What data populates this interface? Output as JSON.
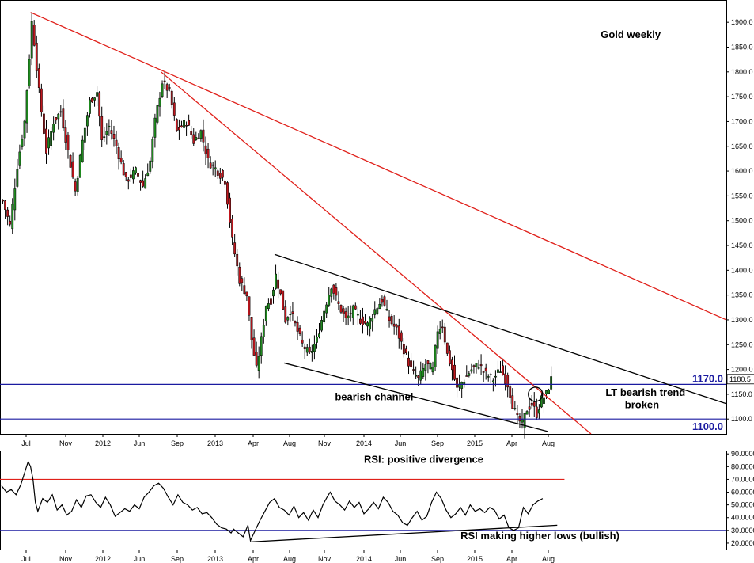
{
  "chart_data": [
    {
      "type": "candlestick",
      "title": "Gold weekly",
      "x_tick_labels": [
        "Jul",
        "Nov",
        "2012",
        "Jun",
        "Sep",
        "2013",
        "Apr",
        "Aug",
        "Nov",
        "2014",
        "Jun",
        "Sep",
        "2015",
        "Apr",
        "Aug"
      ],
      "y_tick_labels": [
        "1900.0",
        "1850.0",
        "1800.0",
        "1750.0",
        "1700.0",
        "1650.0",
        "1600.0",
        "1550.0",
        "1500.0",
        "1450.0",
        "1400.0",
        "1350.0",
        "1300.0",
        "1250.0",
        "1200.0",
        "1150.0",
        "1100.0"
      ],
      "ylim": [
        1070,
        1945
      ],
      "y_ticks": [
        1900,
        1850,
        1800,
        1750,
        1700,
        1650,
        1600,
        1550,
        1500,
        1450,
        1400,
        1350,
        1300,
        1250,
        1200,
        1150,
        1100
      ],
      "up_color": "#1f8a1f",
      "down_color": "#c0161d",
      "approx_close_path": [
        [
          0,
          1540
        ],
        [
          3,
          1490
        ],
        [
          6,
          1610
        ],
        [
          9,
          1700
        ],
        [
          11,
          1830
        ],
        [
          12,
          1900
        ],
        [
          13,
          1860
        ],
        [
          15,
          1760
        ],
        [
          18,
          1640
        ],
        [
          21,
          1700
        ],
        [
          24,
          1720
        ],
        [
          27,
          1640
        ],
        [
          30,
          1560
        ],
        [
          33,
          1660
        ],
        [
          36,
          1740
        ],
        [
          39,
          1760
        ],
        [
          41,
          1660
        ],
        [
          44,
          1690
        ],
        [
          47,
          1650
        ],
        [
          51,
          1580
        ],
        [
          55,
          1600
        ],
        [
          58,
          1570
        ],
        [
          61,
          1620
        ],
        [
          63,
          1700
        ],
        [
          66,
          1780
        ],
        [
          69,
          1760
        ],
        [
          72,
          1680
        ],
        [
          76,
          1700
        ],
        [
          79,
          1660
        ],
        [
          82,
          1680
        ],
        [
          85,
          1620
        ],
        [
          89,
          1600
        ],
        [
          92,
          1580
        ],
        [
          95,
          1460
        ],
        [
          98,
          1380
        ],
        [
          101,
          1350
        ],
        [
          103,
          1260
        ],
        [
          105,
          1200
        ],
        [
          107,
          1260
        ],
        [
          109,
          1330
        ],
        [
          111,
          1340
        ],
        [
          113,
          1390
        ],
        [
          115,
          1350
        ],
        [
          117,
          1300
        ],
        [
          119,
          1320
        ],
        [
          121,
          1290
        ],
        [
          124,
          1250
        ],
        [
          127,
          1230
        ],
        [
          130,
          1260
        ],
        [
          133,
          1320
        ],
        [
          136,
          1370
        ],
        [
          139,
          1330
        ],
        [
          142,
          1300
        ],
        [
          145,
          1320
        ],
        [
          148,
          1300
        ],
        [
          151,
          1290
        ],
        [
          154,
          1320
        ],
        [
          157,
          1340
        ],
        [
          160,
          1300
        ],
        [
          163,
          1280
        ],
        [
          166,
          1240
        ],
        [
          169,
          1200
        ],
        [
          172,
          1180
        ],
        [
          175,
          1210
        ],
        [
          178,
          1200
        ],
        [
          180,
          1280
        ],
        [
          182,
          1290
        ],
        [
          184,
          1230
        ],
        [
          186,
          1200
        ],
        [
          188,
          1160
        ],
        [
          191,
          1180
        ],
        [
          194,
          1200
        ],
        [
          197,
          1210
        ],
        [
          200,
          1190
        ],
        [
          203,
          1180
        ],
        [
          206,
          1200
        ],
        [
          209,
          1170
        ],
        [
          211,
          1130
        ],
        [
          213,
          1100
        ],
        [
          215,
          1090
        ],
        [
          217,
          1120
        ],
        [
          219,
          1130
        ],
        [
          221,
          1110
        ],
        [
          223,
          1140
        ],
        [
          225,
          1150
        ],
        [
          227,
          1180
        ]
      ],
      "levels": [
        {
          "value": 1170.0,
          "label": "1170.0",
          "color": "#1a1aa0"
        },
        {
          "value": 1100.0,
          "label": "1100.0",
          "color": "#1a1aa0"
        }
      ],
      "last_price_label": "1180.5",
      "last_price": 1180.5,
      "trendlines": [
        {
          "color": "#e0201a",
          "from": [
            12,
            1920
          ],
          "to": [
            300,
            1300
          ]
        },
        {
          "color": "#e0201a",
          "from": [
            66,
            1800
          ],
          "to": [
            244,
            1070
          ]
        },
        {
          "color": "#000000",
          "from": [
            113,
            1432
          ],
          "to": [
            300,
            1131
          ]
        },
        {
          "color": "#000000",
          "from": [
            117,
            1213
          ],
          "to": [
            226,
            1075
          ]
        }
      ],
      "annotations": [
        {
          "text": "Gold weekly",
          "x": 248,
          "y": 1868
        },
        {
          "text": "bearish channel",
          "x": 138,
          "y": 1138
        },
        {
          "text": "LT bearish trend",
          "x": 250,
          "y": 1147
        },
        {
          "text": "broken",
          "x": 258,
          "y": 1122
        }
      ],
      "circle_marker": {
        "x": 221,
        "y": 1150
      }
    },
    {
      "type": "line",
      "title": "RSI: positive divergence",
      "x_tick_labels": [
        "Jul",
        "Nov",
        "2012",
        "Jun",
        "Sep",
        "2013",
        "Apr",
        "Aug",
        "Nov",
        "2014",
        "Jun",
        "Sep",
        "2015",
        "Apr",
        "Aug"
      ],
      "y_tick_labels": [
        "90.0000",
        "80.0000",
        "70.0000",
        "60.0000",
        "50.0000",
        "40.0000",
        "30.0000",
        "20.0000"
      ],
      "ylim": [
        15,
        92
      ],
      "y_ticks": [
        90,
        80,
        70,
        60,
        50,
        40,
        30,
        20
      ],
      "series": [
        {
          "color": "#000000",
          "values": [
            [
              0,
              65
            ],
            [
              2,
              60
            ],
            [
              4,
              62
            ],
            [
              6,
              58
            ],
            [
              8,
              66
            ],
            [
              10,
              78
            ],
            [
              11,
              84
            ],
            [
              12,
              80
            ],
            [
              13,
              70
            ],
            [
              14,
              52
            ],
            [
              15,
              45
            ],
            [
              17,
              55
            ],
            [
              19,
              52
            ],
            [
              21,
              58
            ],
            [
              23,
              46
            ],
            [
              25,
              50
            ],
            [
              27,
              42
            ],
            [
              29,
              45
            ],
            [
              31,
              54
            ],
            [
              33,
              48
            ],
            [
              35,
              57
            ],
            [
              37,
              58
            ],
            [
              39,
              52
            ],
            [
              41,
              48
            ],
            [
              43,
              56
            ],
            [
              45,
              50
            ],
            [
              47,
              41
            ],
            [
              49,
              44
            ],
            [
              51,
              47
            ],
            [
              53,
              45
            ],
            [
              55,
              50
            ],
            [
              57,
              47
            ],
            [
              59,
              56
            ],
            [
              61,
              60
            ],
            [
              63,
              65
            ],
            [
              65,
              67
            ],
            [
              67,
              63
            ],
            [
              69,
              56
            ],
            [
              71,
              50
            ],
            [
              73,
              58
            ],
            [
              75,
              52
            ],
            [
              77,
              50
            ],
            [
              79,
              46
            ],
            [
              81,
              48
            ],
            [
              83,
              43
            ],
            [
              85,
              44
            ],
            [
              87,
              40
            ],
            [
              89,
              35
            ],
            [
              91,
              32
            ],
            [
              93,
              31
            ],
            [
              95,
              28
            ],
            [
              96,
              31
            ],
            [
              98,
              28
            ],
            [
              100,
              25
            ],
            [
              102,
              34
            ],
            [
              103,
              22
            ],
            [
              105,
              30
            ],
            [
              107,
              38
            ],
            [
              109,
              45
            ],
            [
              111,
              52
            ],
            [
              113,
              55
            ],
            [
              115,
              48
            ],
            [
              117,
              46
            ],
            [
              119,
              42
            ],
            [
              121,
              49
            ],
            [
              123,
              40
            ],
            [
              125,
              44
            ],
            [
              127,
              38
            ],
            [
              129,
              46
            ],
            [
              131,
              40
            ],
            [
              133,
              50
            ],
            [
              135,
              57
            ],
            [
              136,
              60
            ],
            [
              138,
              53
            ],
            [
              140,
              50
            ],
            [
              142,
              46
            ],
            [
              144,
              53
            ],
            [
              146,
              48
            ],
            [
              148,
              52
            ],
            [
              150,
              43
            ],
            [
              152,
              47
            ],
            [
              154,
              52
            ],
            [
              156,
              47
            ],
            [
              158,
              56
            ],
            [
              160,
              52
            ],
            [
              162,
              45
            ],
            [
              164,
              42
            ],
            [
              166,
              36
            ],
            [
              168,
              34
            ],
            [
              170,
              40
            ],
            [
              172,
              45
            ],
            [
              174,
              38
            ],
            [
              176,
              41
            ],
            [
              178,
              52
            ],
            [
              180,
              60
            ],
            [
              182,
              55
            ],
            [
              184,
              46
            ],
            [
              186,
              40
            ],
            [
              188,
              43
            ],
            [
              190,
              48
            ],
            [
              192,
              42
            ],
            [
              194,
              50
            ],
            [
              196,
              45
            ],
            [
              198,
              47
            ],
            [
              200,
              44
            ],
            [
              202,
              48
            ],
            [
              204,
              46
            ],
            [
              206,
              39
            ],
            [
              208,
              42
            ],
            [
              210,
              32
            ],
            [
              212,
              30
            ],
            [
              214,
              32
            ],
            [
              216,
              48
            ],
            [
              218,
              43
            ],
            [
              220,
              50
            ],
            [
              222,
              53
            ],
            [
              224,
              55
            ]
          ]
        }
      ],
      "levels": [
        {
          "value": 70,
          "color": "#e0201a"
        },
        {
          "value": 30,
          "color": "#1a1aa0"
        }
      ],
      "trendlines": [
        {
          "color": "#000000",
          "from": [
            103,
            21
          ],
          "to": [
            230,
            34
          ]
        }
      ],
      "annotations": [
        {
          "text": "RSI: positive divergence",
          "x": 150,
          "y": 83
        },
        {
          "text": "RSI making higher lows (bullish)",
          "x": 190,
          "y": 23
        }
      ]
    }
  ]
}
